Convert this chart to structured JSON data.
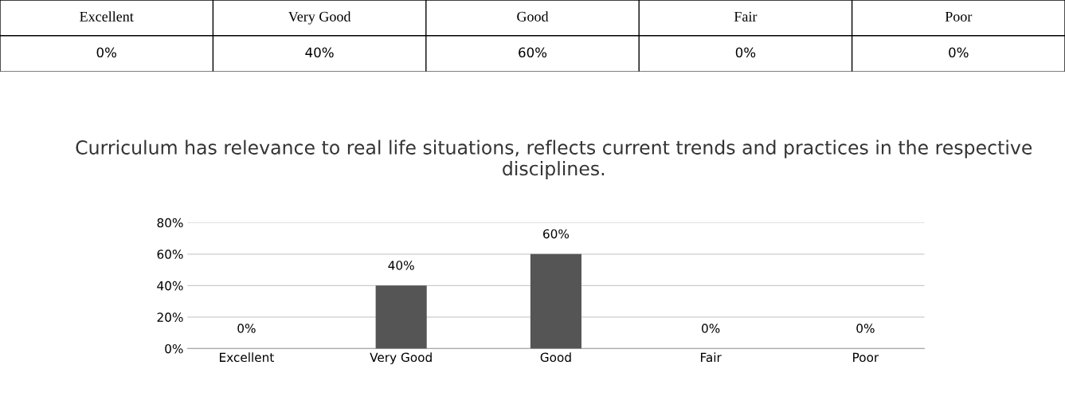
{
  "chart_data": {
    "type": "bar",
    "title": "Curriculum has relevance to real life situations, reflects current trends and practices in the respective disciplines.",
    "categories": [
      "Excellent",
      "Very Good",
      "Good",
      "Fair",
      "Poor"
    ],
    "values": [
      0,
      40,
      60,
      0,
      0
    ],
    "value_labels": [
      "0%",
      "40%",
      "60%",
      "0%",
      "0%"
    ],
    "color": "#555555",
    "ylim": [
      0,
      80
    ],
    "yticks": [
      {
        "value": 0,
        "label": "0%"
      },
      {
        "value": 20,
        "label": "20%"
      },
      {
        "value": 40,
        "label": "40%"
      },
      {
        "value": 60,
        "label": "60%"
      },
      {
        "value": 80,
        "label": "80%"
      }
    ],
    "grid": "y"
  }
}
